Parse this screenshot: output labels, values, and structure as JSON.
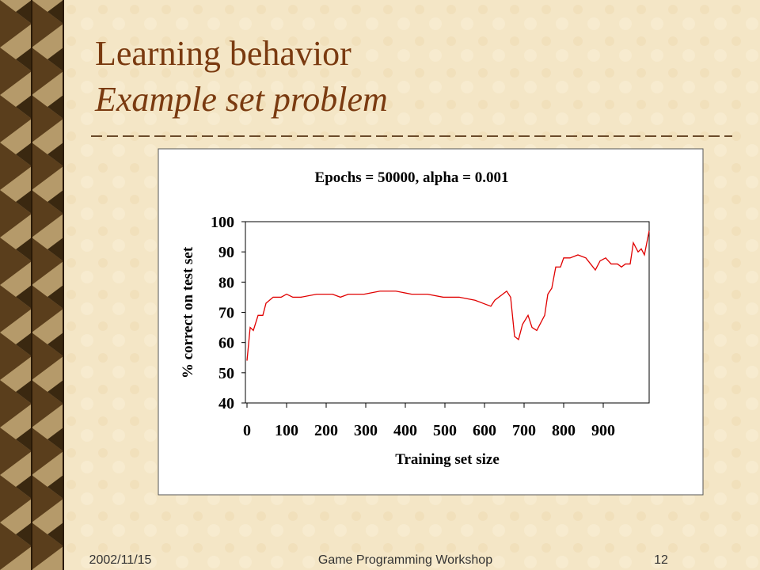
{
  "slide": {
    "title": "Learning behavior",
    "subtitle": "Example set problem"
  },
  "footer": {
    "date": "2002/11/15",
    "text": "Game Programming Workshop",
    "page": "12"
  },
  "chart_data": {
    "type": "line",
    "title": "Epochs = 50000, alpha = 0.001",
    "x_label": "Training set size",
    "y_label": "% correct on test set",
    "x": [
      0,
      8,
      16,
      28,
      40,
      48,
      66,
      86,
      100,
      116,
      136,
      176,
      216,
      236,
      256,
      296,
      336,
      376,
      416,
      456,
      496,
      536,
      576,
      596,
      616,
      626,
      646,
      656,
      666,
      676,
      686,
      696,
      710,
      720,
      732,
      744,
      752,
      760,
      770,
      780,
      792,
      800,
      816,
      836,
      856,
      880,
      892,
      906,
      920,
      936,
      946,
      956,
      968,
      976,
      988,
      996,
      1004,
      1016
    ],
    "series": [
      {
        "name": "% correct",
        "color": "#e00000",
        "values": [
          54,
          65,
          64,
          69,
          69,
          73,
          75,
          75,
          76,
          75,
          75,
          76,
          76,
          75,
          76,
          76,
          77,
          77,
          76,
          76,
          75,
          75,
          74,
          73,
          72,
          74,
          76,
          77,
          75,
          62,
          61,
          66,
          69,
          65,
          64,
          67,
          69,
          76,
          78,
          85,
          85,
          88,
          88,
          89,
          88,
          84,
          87,
          88,
          86,
          86,
          85,
          86,
          86,
          93,
          90,
          91,
          89,
          97
        ]
      }
    ],
    "xlim": [
      -4,
      1016
    ],
    "xticks": [
      0,
      100,
      200,
      300,
      400,
      500,
      600,
      700,
      800,
      900
    ],
    "ylim": [
      40,
      100
    ],
    "yticks": [
      40,
      50,
      60,
      70,
      80,
      90,
      100
    ]
  }
}
